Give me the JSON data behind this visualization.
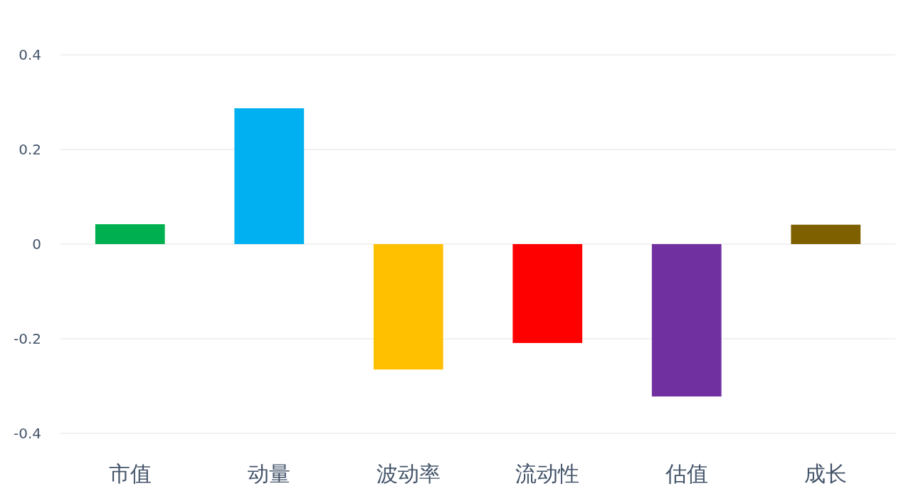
{
  "chart_data": {
    "type": "bar",
    "categories": [
      "市值",
      "动量",
      "波动率",
      "流动性",
      "估值",
      "成长"
    ],
    "values": [
      0.042,
      0.287,
      -0.265,
      -0.209,
      -0.322,
      0.041
    ],
    "colors": [
      "#00b050",
      "#00b0f0",
      "#ffc000",
      "#ff0000",
      "#7030a0",
      "#7f6000"
    ],
    "ylim": [
      -0.4,
      0.4
    ],
    "yticks": [
      -0.4,
      -0.2,
      {
        "value": 0,
        "label": "0"
      },
      0.2,
      0.4
    ],
    "grid": "y"
  }
}
